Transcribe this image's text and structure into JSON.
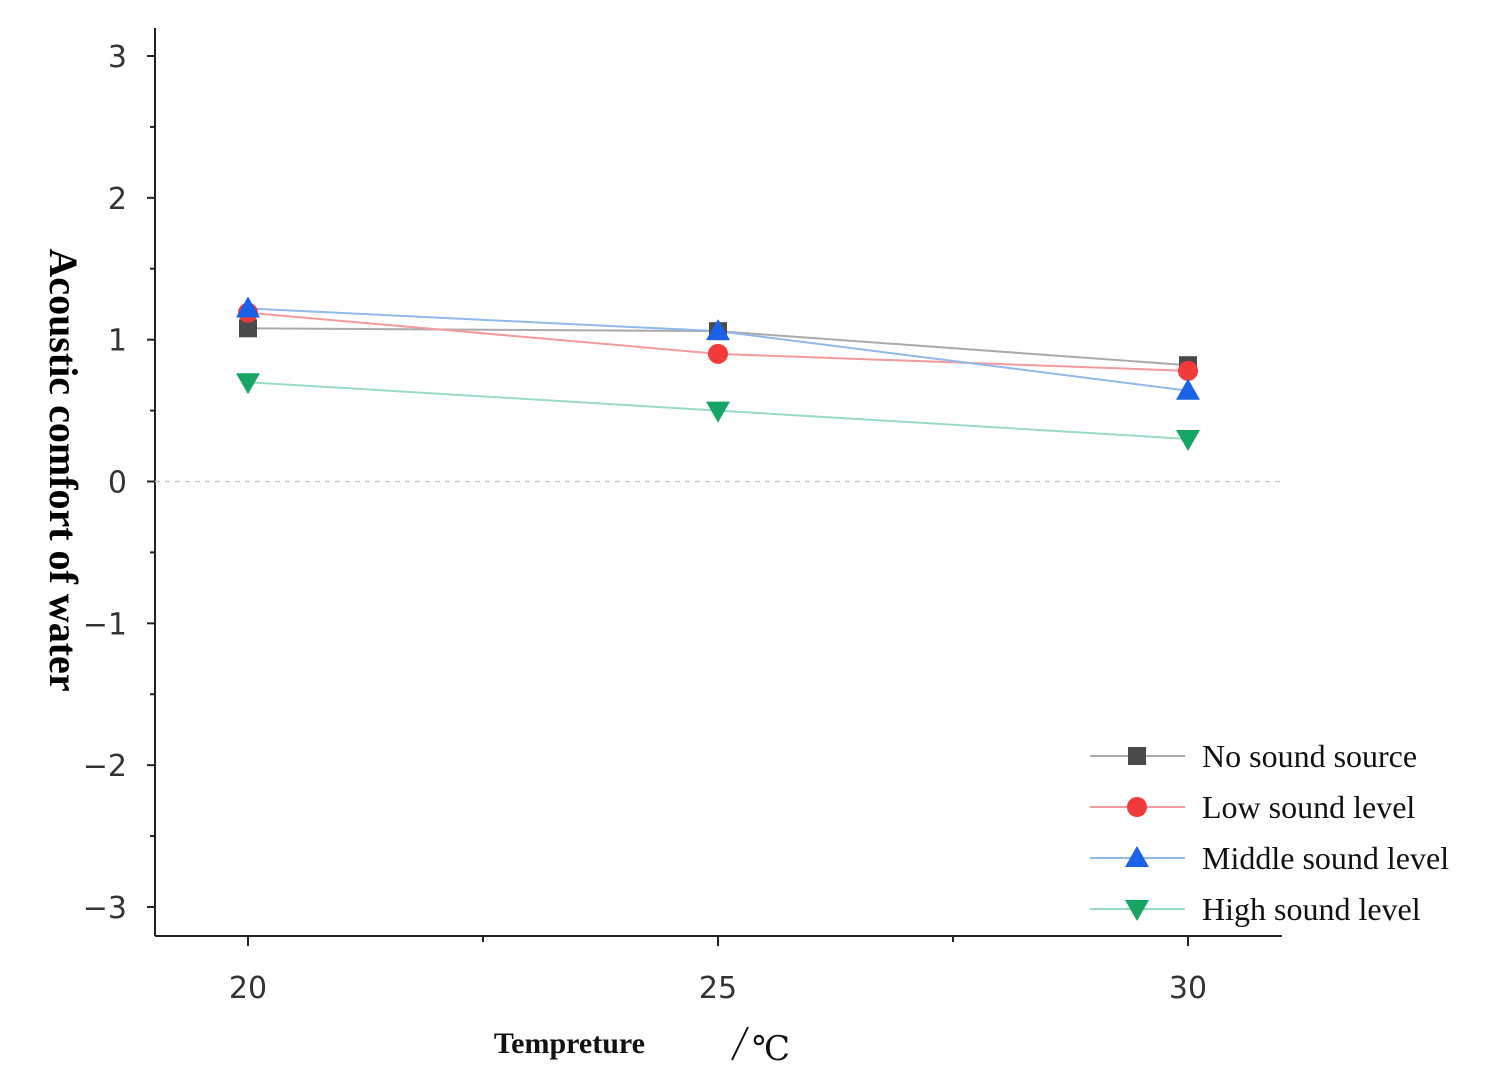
{
  "chart_data": {
    "type": "line",
    "title": "",
    "xlabel": "Tempreture",
    "xlabel_unit": "℃",
    "ylabel": "Acoustic comfort of water",
    "x": [
      20,
      25,
      30
    ],
    "x_tick_labels": [
      "20",
      "25",
      "30"
    ],
    "xlim": [
      19,
      31
    ],
    "ylim": [
      -3.2,
      3.2
    ],
    "y_ticks": [
      3,
      2,
      1,
      0,
      -1,
      -2,
      -3
    ],
    "y_tick_labels": [
      "3",
      "2",
      "1",
      "0",
      "−1",
      "−2",
      "−3"
    ],
    "reference_line": {
      "y": 0,
      "style": "dashed"
    },
    "legend_position": "bottom-right",
    "grid": false,
    "series": [
      {
        "name": "No sound source",
        "values": [
          1.08,
          1.06,
          0.82
        ],
        "marker": "square",
        "line_color": "#aaaaaa",
        "marker_color": "#4a4a4a"
      },
      {
        "name": "Low sound level",
        "values": [
          1.19,
          0.9,
          0.78
        ],
        "marker": "circle",
        "line_color": "#f59a9a",
        "marker_color": "#f23a3a"
      },
      {
        "name": "Middle sound level",
        "values": [
          1.22,
          1.06,
          0.64
        ],
        "marker": "triangle-up",
        "line_color": "#8fb8ec",
        "marker_color": "#1a63e8"
      },
      {
        "name": "High sound level",
        "values": [
          0.7,
          0.5,
          0.3
        ],
        "marker": "triangle-down",
        "line_color": "#99dcc2",
        "marker_color": "#17a564"
      }
    ]
  }
}
